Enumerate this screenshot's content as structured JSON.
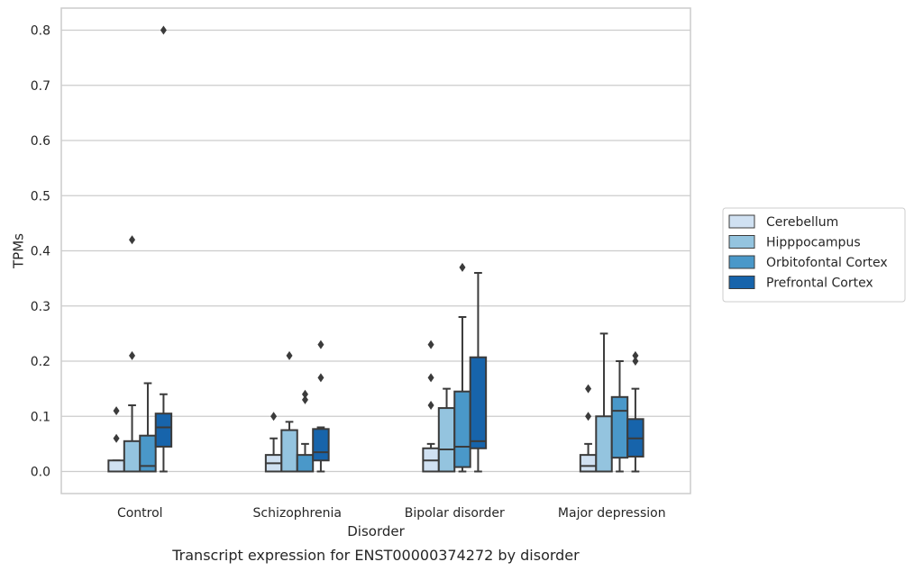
{
  "chart_data": {
    "type": "box",
    "title": "",
    "caption": "Transcript expression for ENST00000374272 by disorder",
    "xlabel": "Disorder",
    "ylabel": "TPMs",
    "ylim": [
      -0.04,
      0.84
    ],
    "yticks": [
      0.0,
      0.1,
      0.2,
      0.3,
      0.4,
      0.5,
      0.6,
      0.7,
      0.8
    ],
    "ytick_labels": [
      "0.0",
      "0.1",
      "0.2",
      "0.3",
      "0.4",
      "0.5",
      "0.6",
      "0.7",
      "0.8"
    ],
    "grid": "horizontal",
    "legend_position": "right",
    "categories": [
      "Control",
      "Schizophrenia",
      "Bipolar disorder",
      "Major depression"
    ],
    "series": [
      {
        "name": "Cerebellum",
        "color": "#d0e1f2",
        "boxes": [
          {
            "whislo": 0.0,
            "q1": 0.0,
            "med": 0.0,
            "q3": 0.02,
            "whishi": 0.02,
            "fliers": [
              0.06,
              0.11
            ]
          },
          {
            "whislo": 0.0,
            "q1": 0.0,
            "med": 0.015,
            "q3": 0.03,
            "whishi": 0.06,
            "fliers": [
              0.1
            ]
          },
          {
            "whislo": 0.0,
            "q1": 0.0,
            "med": 0.02,
            "q3": 0.042,
            "whishi": 0.05,
            "fliers": [
              0.12,
              0.17,
              0.23
            ]
          },
          {
            "whislo": 0.0,
            "q1": 0.0,
            "med": 0.01,
            "q3": 0.03,
            "whishi": 0.05,
            "fliers": [
              0.1,
              0.15
            ]
          }
        ]
      },
      {
        "name": "Hipppocampus",
        "color": "#94c4df",
        "boxes": [
          {
            "whislo": 0.0,
            "q1": 0.0,
            "med": 0.0,
            "q3": 0.055,
            "whishi": 0.12,
            "fliers": [
              0.21,
              0.42
            ]
          },
          {
            "whislo": 0.0,
            "q1": 0.0,
            "med": 0.0,
            "q3": 0.075,
            "whishi": 0.09,
            "fliers": [
              0.21
            ]
          },
          {
            "whislo": 0.0,
            "q1": 0.0,
            "med": 0.04,
            "q3": 0.115,
            "whishi": 0.15,
            "fliers": []
          },
          {
            "whislo": 0.0,
            "q1": 0.0,
            "med": 0.0,
            "q3": 0.1,
            "whishi": 0.25,
            "fliers": []
          }
        ]
      },
      {
        "name": "Orbitofontal Cortex",
        "color": "#4a98c9",
        "boxes": [
          {
            "whislo": 0.0,
            "q1": 0.0,
            "med": 0.01,
            "q3": 0.065,
            "whishi": 0.16,
            "fliers": []
          },
          {
            "whislo": 0.0,
            "q1": 0.0,
            "med": 0.0,
            "q3": 0.03,
            "whishi": 0.05,
            "fliers": [
              0.13,
              0.14
            ]
          },
          {
            "whislo": 0.0,
            "q1": 0.008,
            "med": 0.045,
            "q3": 0.145,
            "whishi": 0.28,
            "fliers": [
              0.37
            ]
          },
          {
            "whislo": 0.0,
            "q1": 0.025,
            "med": 0.11,
            "q3": 0.135,
            "whishi": 0.2,
            "fliers": []
          }
        ]
      },
      {
        "name": "Prefrontal Cortex",
        "color": "#1764ab",
        "boxes": [
          {
            "whislo": 0.0,
            "q1": 0.045,
            "med": 0.08,
            "q3": 0.105,
            "whishi": 0.14,
            "fliers": [
              0.8
            ]
          },
          {
            "whislo": 0.0,
            "q1": 0.02,
            "med": 0.035,
            "q3": 0.077,
            "whishi": 0.08,
            "fliers": [
              0.17,
              0.23
            ]
          },
          {
            "whislo": 0.0,
            "q1": 0.042,
            "med": 0.055,
            "q3": 0.207,
            "whishi": 0.36,
            "fliers": []
          },
          {
            "whislo": 0.0,
            "q1": 0.027,
            "med": 0.06,
            "q3": 0.095,
            "whishi": 0.15,
            "fliers": [
              0.2,
              0.21
            ]
          }
        ]
      }
    ]
  }
}
